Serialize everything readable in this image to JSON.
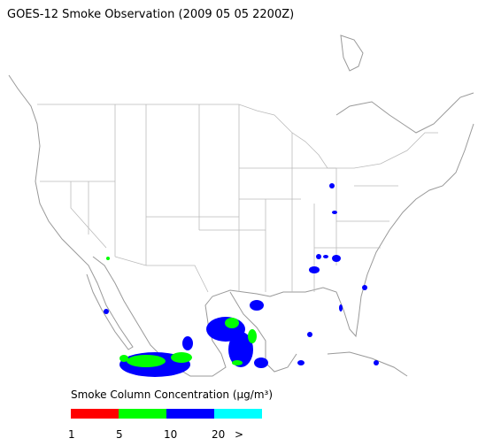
{
  "title": "GOES-12 Smoke Observation (2009 05 05  2200Z)",
  "legend": {
    "title": "Smoke Column Concentration (µg/m³)",
    "colors": [
      "#ff0000",
      "#00ff00",
      "#0000ff",
      "#00ffff"
    ],
    "labels": [
      "1",
      "5",
      "10",
      "20",
      ">"
    ]
  }
}
